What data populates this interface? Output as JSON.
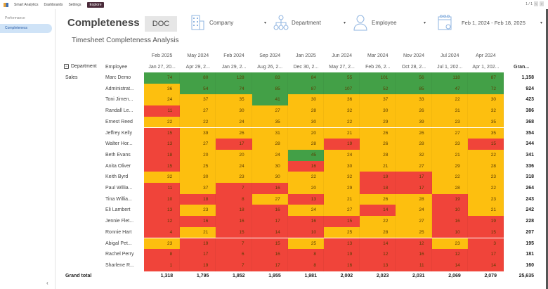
{
  "topbar": {
    "app": "Smart Analytics",
    "nav": [
      "Dashboards",
      "Settings",
      "Explore"
    ],
    "pager": "1 / 1"
  },
  "sidebar": {
    "items": [
      {
        "label": "Performance"
      },
      {
        "label": "Completeness"
      }
    ]
  },
  "header": {
    "title": "Completeness",
    "doc": "DOC",
    "filters": {
      "company": "Company",
      "department": "Department",
      "employee": "Employee",
      "date_range": "Feb 1, 2024 - Feb 18, 2025"
    }
  },
  "report": {
    "subtitle": "Timesheet Completeness Analysis",
    "dept_header": "Department",
    "emp_header": "Employee",
    "grand_header": "Gran...",
    "department": "Sales",
    "grand_total_label": "Grand total"
  },
  "colors": {
    "green": "#43a047",
    "yellow": "#fdbf0f",
    "red": "#f0443a"
  },
  "thresholds": {
    "red_below": 20,
    "green_from": 40
  },
  "columns": [
    {
      "month": "Feb 2025",
      "week": "Jan 27, 20..."
    },
    {
      "month": "May 2024",
      "week": "Apr 29, 2..."
    },
    {
      "month": "Feb 2024",
      "week": "Jan 29, 2..."
    },
    {
      "month": "Sep 2024",
      "week": "Aug 26, 2..."
    },
    {
      "month": "Jan 2025",
      "week": "Dec 30, 2..."
    },
    {
      "month": "Jun 2024",
      "week": "May 27, 2..."
    },
    {
      "month": "Mar 2024",
      "week": "Feb 26, 2..."
    },
    {
      "month": "Nov 2024",
      "week": "Oct 28, 2..."
    },
    {
      "month": "Jul 2024",
      "week": "Jul 1, 202..."
    },
    {
      "month": "Apr 2024",
      "week": "Apr 1, 202..."
    }
  ],
  "rows": [
    {
      "name": "Marc Demo",
      "values": [
        74,
        80,
        128,
        83,
        84,
        55,
        101,
        56,
        118,
        87
      ],
      "total": "1,158"
    },
    {
      "name": "Administrat...",
      "values": [
        36,
        54,
        74,
        85,
        87,
        107,
        52,
        85,
        47,
        72
      ],
      "total": "924"
    },
    {
      "name": "Toni Jimen...",
      "values": [
        24,
        37,
        35,
        41,
        30,
        36,
        37,
        33,
        22,
        30
      ],
      "total": "423"
    },
    {
      "name": "Randall Le...",
      "values": [
        11,
        27,
        30,
        27,
        28,
        32,
        30,
        26,
        31,
        32
      ],
      "total": "386"
    },
    {
      "name": "Ernest Reed",
      "values": [
        22,
        22,
        24,
        35,
        30,
        22,
        29,
        39,
        23,
        35
      ],
      "total": "368"
    },
    {
      "name": "Jeffrey Kelly",
      "values": [
        15,
        39,
        26,
        31,
        20,
        21,
        26,
        26,
        27,
        35
      ],
      "total": "354"
    },
    {
      "name": "Walter Hor...",
      "values": [
        13,
        27,
        17,
        28,
        28,
        19,
        26,
        28,
        33,
        15
      ],
      "total": "344"
    },
    {
      "name": "Beth Evans",
      "values": [
        18,
        20,
        20,
        24,
        45,
        24,
        28,
        32,
        21,
        22
      ],
      "total": "341"
    },
    {
      "name": "Anita Oliver",
      "values": [
        15,
        25,
        24,
        30,
        16,
        30,
        21,
        27,
        29,
        28
      ],
      "total": "336"
    },
    {
      "name": "Keith Byrd",
      "values": [
        32,
        30,
        23,
        30,
        22,
        32,
        19,
        17,
        22,
        23
      ],
      "total": "318"
    },
    {
      "name": "Paul Willia...",
      "values": [
        11,
        37,
        7,
        16,
        20,
        29,
        18,
        17,
        28,
        22
      ],
      "total": "264"
    },
    {
      "name": "Tina Willia...",
      "values": [
        10,
        18,
        8,
        27,
        13,
        21,
        26,
        28,
        19,
        23
      ],
      "total": "243"
    },
    {
      "name": "Eli Lambert",
      "values": [
        13,
        23,
        18,
        16,
        24,
        27,
        14,
        24,
        10,
        21
      ],
      "total": "242"
    },
    {
      "name": "Jennie Flet...",
      "values": [
        12,
        16,
        16,
        17,
        16,
        15,
        22,
        27,
        16,
        19
      ],
      "total": "228"
    },
    {
      "name": "Ronnie Hart",
      "values": [
        4,
        21,
        15,
        14,
        10,
        25,
        28,
        25,
        10,
        15
      ],
      "total": "207"
    },
    {
      "name": "Abigal Pet...",
      "values": [
        23,
        19,
        7,
        15,
        25,
        13,
        14,
        12,
        23,
        3
      ],
      "total": "195"
    },
    {
      "name": "Rachel Perry",
      "values": [
        8,
        17,
        6,
        16,
        8,
        19,
        12,
        16,
        12,
        17
      ],
      "total": "181"
    },
    {
      "name": "Sharlene R...",
      "values": [
        1,
        19,
        7,
        17,
        8,
        16,
        13,
        11,
        14,
        14
      ],
      "total": "160"
    }
  ],
  "totals": [
    "1,318",
    "1,795",
    "1,852",
    "1,955",
    "1,981",
    "2,002",
    "2,023",
    "2,031",
    "2,069",
    "2,079"
  ],
  "grand_total": "25,635"
}
